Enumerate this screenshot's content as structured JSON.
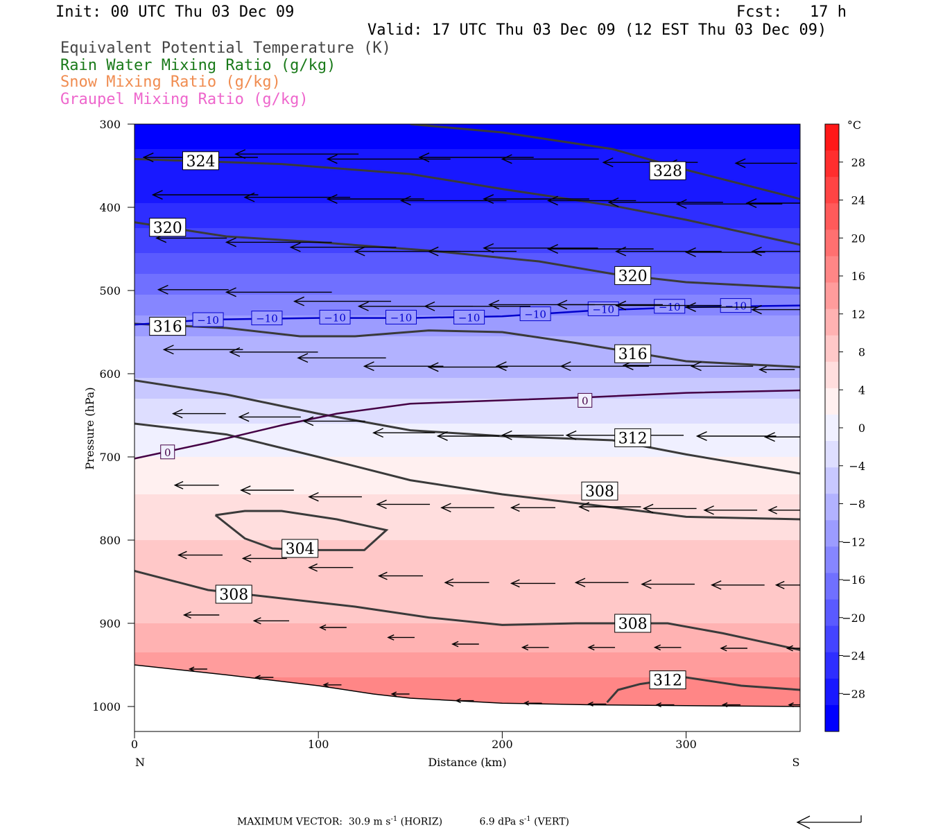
{
  "header": {
    "init": "Init: 00 UTC Thu 03 Dec 09",
    "fcst": "Fcst:   17 h",
    "valid": "Valid: 17 UTC Thu 03 Dec 09 (12 EST Thu 03 Dec 09)"
  },
  "legend": {
    "items": [
      {
        "label": "Equivalent Potential Temperature (K)",
        "color": "#444444"
      },
      {
        "label": "Rain Water Mixing Ratio (g/kg)",
        "color": "#1a7a1a"
      },
      {
        "label": "Snow Mixing Ratio (g/kg)",
        "color": "#f08c50"
      },
      {
        "label": "Graupel Mixing Ratio (g/kg)",
        "color": "#ee66cc"
      }
    ]
  },
  "chart_data": {
    "type": "heatmap",
    "description_fields": "Vertical cross-section N to S; shaded temperature (°C), theta-e contours (K), isotherm contours, wind vectors",
    "x_axis": {
      "label": "Distance (km)",
      "range": [
        0,
        362
      ],
      "ticks": [
        0,
        100,
        200,
        300
      ],
      "end_labels": {
        "left": "N",
        "right": "S"
      }
    },
    "y_axis": {
      "label": "Pressure (hPa)",
      "range": [
        300,
        1030
      ],
      "ticks": [
        300,
        400,
        500,
        600,
        700,
        800,
        900,
        1000
      ],
      "inverted": true
    },
    "colorbar": {
      "unit": "°C",
      "ticks": [
        28,
        24,
        20,
        16,
        12,
        8,
        4,
        0,
        -4,
        -8,
        -12,
        -16,
        -20,
        -24,
        -28
      ],
      "colors": [
        "#0000ff",
        "#1818ff",
        "#2e2eff",
        "#4444ff",
        "#5a5aff",
        "#7070ff",
        "#8686ff",
        "#9c9cff",
        "#b2b2ff",
        "#c8c8ff",
        "#dedeff",
        "#f0f0ff",
        "#fff0f0",
        "#ffdede",
        "#ffc8c8",
        "#ffb2b2",
        "#ff9c9c",
        "#ff8686",
        "#ff7070",
        "#ff5a5a",
        "#ff4444",
        "#ff2e2e",
        "#ff1818"
      ]
    },
    "temperature_bands": [
      {
        "p_top": 300,
        "p_bottom": 330,
        "t": -30
      },
      {
        "p_top": 330,
        "p_bottom": 360,
        "t": -28
      },
      {
        "p_top": 360,
        "p_bottom": 395,
        "t": -26
      },
      {
        "p_top": 395,
        "p_bottom": 425,
        "t": -24
      },
      {
        "p_top": 425,
        "p_bottom": 455,
        "t": -22
      },
      {
        "p_top": 455,
        "p_bottom": 480,
        "t": -20
      },
      {
        "p_top": 480,
        "p_bottom": 505,
        "t": -17
      },
      {
        "p_top": 505,
        "p_bottom": 530,
        "t": -14
      },
      {
        "p_top": 530,
        "p_bottom": 555,
        "t": -11
      },
      {
        "p_top": 555,
        "p_bottom": 580,
        "t": -9
      },
      {
        "p_top": 580,
        "p_bottom": 605,
        "t": -7
      },
      {
        "p_top": 605,
        "p_bottom": 630,
        "t": -5
      },
      {
        "p_top": 630,
        "p_bottom": 660,
        "t": -2
      },
      {
        "p_top": 660,
        "p_bottom": 700,
        "t": 1
      },
      {
        "p_top": 700,
        "p_bottom": 745,
        "t": 3
      },
      {
        "p_top": 745,
        "p_bottom": 800,
        "t": 5
      },
      {
        "p_top": 800,
        "p_bottom": 860,
        "t": 7
      },
      {
        "p_top": 860,
        "p_bottom": 900,
        "t": 9
      },
      {
        "p_top": 900,
        "p_bottom": 935,
        "t": 11
      },
      {
        "p_top": 935,
        "p_bottom": 965,
        "t": 13
      },
      {
        "p_top": 965,
        "p_bottom": 1000,
        "t": 15
      }
    ],
    "ground": [
      [
        0,
        950
      ],
      [
        50,
        962
      ],
      [
        100,
        975
      ],
      [
        130,
        985
      ],
      [
        150,
        990
      ],
      [
        200,
        996
      ],
      [
        250,
        998
      ],
      [
        300,
        999
      ],
      [
        362,
        1000
      ]
    ],
    "theta_e_contours": [
      {
        "label": "328",
        "points": [
          [
            150,
            300
          ],
          [
            200,
            310
          ],
          [
            260,
            330
          ],
          [
            300,
            355
          ],
          [
            362,
            390
          ]
        ]
      },
      {
        "label": "324",
        "points": [
          [
            0,
            342
          ],
          [
            80,
            348
          ],
          [
            150,
            360
          ],
          [
            200,
            378
          ],
          [
            260,
            398
          ],
          [
            300,
            415
          ],
          [
            362,
            445
          ]
        ]
      },
      {
        "label": "320",
        "points": [
          [
            0,
            418
          ],
          [
            50,
            435
          ],
          [
            100,
            442
          ],
          [
            160,
            452
          ],
          [
            220,
            465
          ],
          [
            260,
            480
          ],
          [
            300,
            490
          ],
          [
            362,
            497
          ]
        ]
      },
      {
        "label": "316",
        "points": [
          [
            0,
            540
          ],
          [
            50,
            545
          ],
          [
            90,
            555
          ],
          [
            120,
            555
          ],
          [
            160,
            548
          ],
          [
            200,
            550
          ],
          [
            240,
            563
          ],
          [
            300,
            585
          ],
          [
            362,
            592
          ]
        ]
      },
      {
        "label": "312",
        "points": [
          [
            0,
            608
          ],
          [
            50,
            625
          ],
          [
            100,
            648
          ],
          [
            150,
            668
          ],
          [
            200,
            675
          ],
          [
            260,
            680
          ],
          [
            300,
            697
          ],
          [
            362,
            720
          ]
        ]
      },
      {
        "label": "308",
        "points": [
          [
            0,
            660
          ],
          [
            50,
            673
          ],
          [
            100,
            700
          ],
          [
            150,
            728
          ],
          [
            200,
            745
          ],
          [
            250,
            758
          ],
          [
            300,
            772
          ],
          [
            362,
            775
          ]
        ]
      },
      {
        "label": "304",
        "points": [
          [
            44,
            770
          ],
          [
            60,
            765
          ],
          [
            80,
            765
          ],
          [
            110,
            775
          ],
          [
            137,
            788
          ],
          [
            125,
            812
          ],
          [
            95,
            812
          ],
          [
            75,
            810
          ],
          [
            60,
            798
          ],
          [
            44,
            770
          ]
        ]
      },
      {
        "label": "308",
        "points": [
          [
            0,
            837
          ],
          [
            40,
            860
          ],
          [
            80,
            870
          ],
          [
            120,
            880
          ],
          [
            160,
            893
          ],
          [
            200,
            902
          ],
          [
            240,
            900
          ],
          [
            290,
            900
          ],
          [
            320,
            912
          ],
          [
            362,
            932
          ]
        ]
      },
      {
        "label": "312",
        "points": [
          [
            257,
            995
          ],
          [
            263,
            980
          ],
          [
            275,
            973
          ],
          [
            300,
            965
          ],
          [
            330,
            975
          ],
          [
            362,
            980
          ]
        ]
      }
    ],
    "contour_labels": [
      {
        "text": "324",
        "x": 36,
        "p": 344
      },
      {
        "text": "328",
        "x": 290,
        "p": 356
      },
      {
        "text": "320",
        "x": 18,
        "p": 424
      },
      {
        "text": "320",
        "x": 271,
        "p": 482
      },
      {
        "text": "316",
        "x": 18,
        "p": 543
      },
      {
        "text": "316",
        "x": 271,
        "p": 576
      },
      {
        "text": "312",
        "x": 271,
        "p": 677
      },
      {
        "text": "308",
        "x": 253,
        "p": 741
      },
      {
        "text": "304",
        "x": 90,
        "p": 810
      },
      {
        "text": "308",
        "x": 54,
        "p": 865
      },
      {
        "text": "308",
        "x": 271,
        "p": 900
      },
      {
        "text": "312",
        "x": 290,
        "p": 968
      }
    ],
    "isotherms": [
      {
        "value": -10,
        "color": "#0000cc",
        "points": [
          [
            0,
            541
          ],
          [
            40,
            535
          ],
          [
            100,
            533
          ],
          [
            150,
            533
          ],
          [
            200,
            531
          ],
          [
            250,
            524
          ],
          [
            300,
            520
          ],
          [
            362,
            518
          ]
        ],
        "labels": [
          [
            40,
            535
          ],
          [
            72,
            533
          ],
          [
            109,
            532
          ],
          [
            145,
            532
          ],
          [
            182,
            532
          ],
          [
            218,
            528
          ],
          [
            255,
            522
          ],
          [
            291,
            519
          ],
          [
            327,
            518
          ]
        ]
      },
      {
        "value": 0,
        "color": "#440044",
        "points": [
          [
            0,
            702
          ],
          [
            40,
            683
          ],
          [
            80,
            662
          ],
          [
            110,
            648
          ],
          [
            150,
            636
          ],
          [
            200,
            632
          ],
          [
            250,
            628
          ],
          [
            300,
            623
          ],
          [
            362,
            620
          ]
        ],
        "labels": [
          [
            18,
            694
          ],
          [
            245,
            632
          ]
        ]
      }
    ],
    "wind_vectors": [
      {
        "x": 5,
        "p": 340,
        "len": 65
      },
      {
        "x": 55,
        "p": 336,
        "len": 70
      },
      {
        "x": 105,
        "p": 342,
        "len": 70
      },
      {
        "x": 155,
        "p": 340,
        "len": 65
      },
      {
        "x": 200,
        "p": 342,
        "len": 55
      },
      {
        "x": 255,
        "p": 346,
        "len": 35
      },
      {
        "x": 292,
        "p": 346,
        "len": 15
      },
      {
        "x": 327,
        "p": 347,
        "len": 35
      },
      {
        "x": 10,
        "p": 385,
        "len": 60
      },
      {
        "x": 60,
        "p": 388,
        "len": 60
      },
      {
        "x": 105,
        "p": 390,
        "len": 55
      },
      {
        "x": 145,
        "p": 392,
        "len": 60
      },
      {
        "x": 190,
        "p": 390,
        "len": 60
      },
      {
        "x": 225,
        "p": 392,
        "len": 50
      },
      {
        "x": 258,
        "p": 394,
        "len": 65
      },
      {
        "x": 295,
        "p": 396,
        "len": 60
      },
      {
        "x": 333,
        "p": 395,
        "len": 40
      },
      {
        "x": 12,
        "p": 437,
        "len": 40
      },
      {
        "x": 50,
        "p": 442,
        "len": 60
      },
      {
        "x": 85,
        "p": 448,
        "len": 60
      },
      {
        "x": 120,
        "p": 453,
        "len": 60
      },
      {
        "x": 160,
        "p": 453,
        "len": 50
      },
      {
        "x": 190,
        "p": 449,
        "len": 65
      },
      {
        "x": 225,
        "p": 450,
        "len": 60
      },
      {
        "x": 262,
        "p": 453,
        "len": 60
      },
      {
        "x": 300,
        "p": 454,
        "len": 45
      },
      {
        "x": 336,
        "p": 453,
        "len": 30
      },
      {
        "x": 13,
        "p": 499,
        "len": 40
      },
      {
        "x": 50,
        "p": 502,
        "len": 60
      },
      {
        "x": 87,
        "p": 513,
        "len": 55
      },
      {
        "x": 122,
        "p": 519,
        "len": 65
      },
      {
        "x": 158,
        "p": 519,
        "len": 60
      },
      {
        "x": 193,
        "p": 517,
        "len": 60
      },
      {
        "x": 230,
        "p": 517,
        "len": 60
      },
      {
        "x": 262,
        "p": 518,
        "len": 60
      },
      {
        "x": 300,
        "p": 520,
        "len": 40
      },
      {
        "x": 336,
        "p": 523,
        "len": 30
      },
      {
        "x": 16,
        "p": 571,
        "len": 45
      },
      {
        "x": 52,
        "p": 574,
        "len": 50
      },
      {
        "x": 89,
        "p": 581,
        "len": 50
      },
      {
        "x": 125,
        "p": 591,
        "len": 45
      },
      {
        "x": 160,
        "p": 592,
        "len": 45
      },
      {
        "x": 197,
        "p": 591,
        "len": 40
      },
      {
        "x": 232,
        "p": 591,
        "len": 50
      },
      {
        "x": 266,
        "p": 590,
        "len": 40
      },
      {
        "x": 303,
        "p": 591,
        "len": 35
      },
      {
        "x": 340,
        "p": 595,
        "len": 20
      },
      {
        "x": 21,
        "p": 648,
        "len": 30
      },
      {
        "x": 57,
        "p": 652,
        "len": 35
      },
      {
        "x": 92,
        "p": 657,
        "len": 35
      },
      {
        "x": 130,
        "p": 671,
        "len": 35
      },
      {
        "x": 165,
        "p": 675,
        "len": 35
      },
      {
        "x": 200,
        "p": 674,
        "len": 35
      },
      {
        "x": 235,
        "p": 674,
        "len": 35
      },
      {
        "x": 270,
        "p": 674,
        "len": 30
      },
      {
        "x": 306,
        "p": 675,
        "len": 45
      },
      {
        "x": 343,
        "p": 676,
        "len": 40
      },
      {
        "x": 22,
        "p": 734,
        "len": 25
      },
      {
        "x": 58,
        "p": 740,
        "len": 30
      },
      {
        "x": 95,
        "p": 748,
        "len": 30
      },
      {
        "x": 132,
        "p": 757,
        "len": 30
      },
      {
        "x": 167,
        "p": 761,
        "len": 30
      },
      {
        "x": 205,
        "p": 761,
        "len": 25
      },
      {
        "x": 242,
        "p": 760,
        "len": 35
      },
      {
        "x": 277,
        "p": 762,
        "len": 30
      },
      {
        "x": 310,
        "p": 764,
        "len": 30
      },
      {
        "x": 345,
        "p": 764,
        "len": 25
      },
      {
        "x": 24,
        "p": 818,
        "len": 25
      },
      {
        "x": 59,
        "p": 822,
        "len": 25
      },
      {
        "x": 95,
        "p": 833,
        "len": 25
      },
      {
        "x": 133,
        "p": 843,
        "len": 25
      },
      {
        "x": 169,
        "p": 851,
        "len": 25
      },
      {
        "x": 205,
        "p": 852,
        "len": 25
      },
      {
        "x": 240,
        "p": 851,
        "len": 30
      },
      {
        "x": 276,
        "p": 853,
        "len": 30
      },
      {
        "x": 314,
        "p": 854,
        "len": 30
      },
      {
        "x": 349,
        "p": 854,
        "len": 25
      },
      {
        "x": 27,
        "p": 890,
        "len": 20
      },
      {
        "x": 65,
        "p": 897,
        "len": 20
      },
      {
        "x": 101,
        "p": 905,
        "len": 15
      },
      {
        "x": 138,
        "p": 917,
        "len": 15
      },
      {
        "x": 173,
        "p": 925,
        "len": 15
      },
      {
        "x": 211,
        "p": 929,
        "len": 15
      },
      {
        "x": 247,
        "p": 929,
        "len": 15
      },
      {
        "x": 283,
        "p": 929,
        "len": 15
      },
      {
        "x": 319,
        "p": 930,
        "len": 15
      },
      {
        "x": 355,
        "p": 930,
        "len": 15
      },
      {
        "x": 30,
        "p": 955,
        "len": 10
      },
      {
        "x": 66,
        "p": 965,
        "len": 10
      },
      {
        "x": 103,
        "p": 974,
        "len": 10
      },
      {
        "x": 140,
        "p": 985,
        "len": 10
      },
      {
        "x": 175,
        "p": 993,
        "len": 10
      },
      {
        "x": 212,
        "p": 996,
        "len": 10
      },
      {
        "x": 247,
        "p": 997,
        "len": 10
      },
      {
        "x": 284,
        "p": 998,
        "len": 10
      },
      {
        "x": 320,
        "p": 998,
        "len": 10
      },
      {
        "x": 356,
        "p": 998,
        "len": 10
      }
    ]
  },
  "footer": {
    "max_vector_label": "MAXIMUM VECTOR:",
    "horiz_value": "30.9 m s",
    "horiz_exp": "-1",
    "horiz_suffix": " (HORIZ)",
    "vert_value": "6.9 dPa s",
    "vert_exp": "-1",
    "vert_suffix": " (VERT)"
  }
}
